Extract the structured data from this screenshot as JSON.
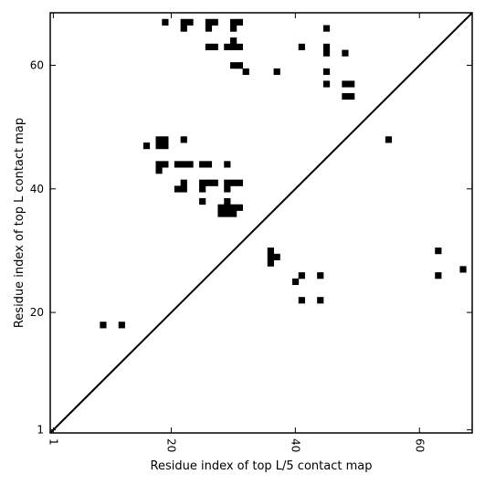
{
  "chart_data": {
    "type": "heatmap",
    "title": "",
    "xlabel": "Residue index of top L/5 contact map",
    "ylabel": "Residue index of top L contact map",
    "xlim": [
      0.5,
      68.5
    ],
    "ylim": [
      0.5,
      68.5
    ],
    "xticks": [
      {
        "value": 1,
        "label": "1"
      },
      {
        "value": 20,
        "label": "20"
      },
      {
        "value": 40,
        "label": "40"
      },
      {
        "value": 60,
        "label": "60"
      }
    ],
    "yticks": [
      {
        "value": 1,
        "label": "1"
      },
      {
        "value": 20,
        "label": "20"
      },
      {
        "value": 40,
        "label": "40"
      },
      {
        "value": 60,
        "label": "60"
      }
    ],
    "diagonal": true,
    "colors": {
      "contact": "#000000",
      "background": "#ffffff",
      "frame": "#000000"
    },
    "cells": [
      [
        19,
        67
      ],
      [
        22,
        67
      ],
      [
        23,
        67
      ],
      [
        26,
        67
      ],
      [
        27,
        67
      ],
      [
        30,
        67
      ],
      [
        31,
        67
      ],
      [
        22,
        66
      ],
      [
        26,
        66
      ],
      [
        30,
        66
      ],
      [
        45,
        66
      ],
      [
        30,
        64
      ],
      [
        26,
        63
      ],
      [
        27,
        63
      ],
      [
        29,
        63
      ],
      [
        30,
        63
      ],
      [
        31,
        63
      ],
      [
        41,
        63
      ],
      [
        45,
        63
      ],
      [
        45,
        62
      ],
      [
        48,
        62
      ],
      [
        30,
        60
      ],
      [
        31,
        60
      ],
      [
        32,
        59
      ],
      [
        37,
        59
      ],
      [
        45,
        59
      ],
      [
        45,
        57
      ],
      [
        48,
        57
      ],
      [
        49,
        57
      ],
      [
        48,
        55
      ],
      [
        49,
        55
      ],
      [
        18,
        48
      ],
      [
        19,
        48
      ],
      [
        22,
        48
      ],
      [
        55,
        48
      ],
      [
        16,
        47
      ],
      [
        18,
        47
      ],
      [
        19,
        47
      ],
      [
        18,
        44
      ],
      [
        19,
        44
      ],
      [
        21,
        44
      ],
      [
        22,
        44
      ],
      [
        23,
        44
      ],
      [
        25,
        44
      ],
      [
        26,
        44
      ],
      [
        29,
        44
      ],
      [
        18,
        43
      ],
      [
        22,
        41
      ],
      [
        25,
        41
      ],
      [
        26,
        41
      ],
      [
        27,
        41
      ],
      [
        29,
        41
      ],
      [
        30,
        41
      ],
      [
        31,
        41
      ],
      [
        21,
        40
      ],
      [
        22,
        40
      ],
      [
        25,
        40
      ],
      [
        29,
        40
      ],
      [
        25,
        38
      ],
      [
        29,
        38
      ],
      [
        28,
        37
      ],
      [
        29,
        37
      ],
      [
        30,
        37
      ],
      [
        31,
        37
      ],
      [
        28,
        36
      ],
      [
        29,
        36
      ],
      [
        30,
        36
      ],
      [
        36,
        30
      ],
      [
        63,
        30
      ],
      [
        36,
        29
      ],
      [
        37,
        29
      ],
      [
        36,
        28
      ],
      [
        41,
        26
      ],
      [
        44,
        26
      ],
      [
        63,
        26
      ],
      [
        40,
        25
      ],
      [
        67,
        27
      ],
      [
        41,
        22
      ],
      [
        44,
        22
      ],
      [
        9,
        18
      ],
      [
        12,
        18
      ]
    ]
  }
}
